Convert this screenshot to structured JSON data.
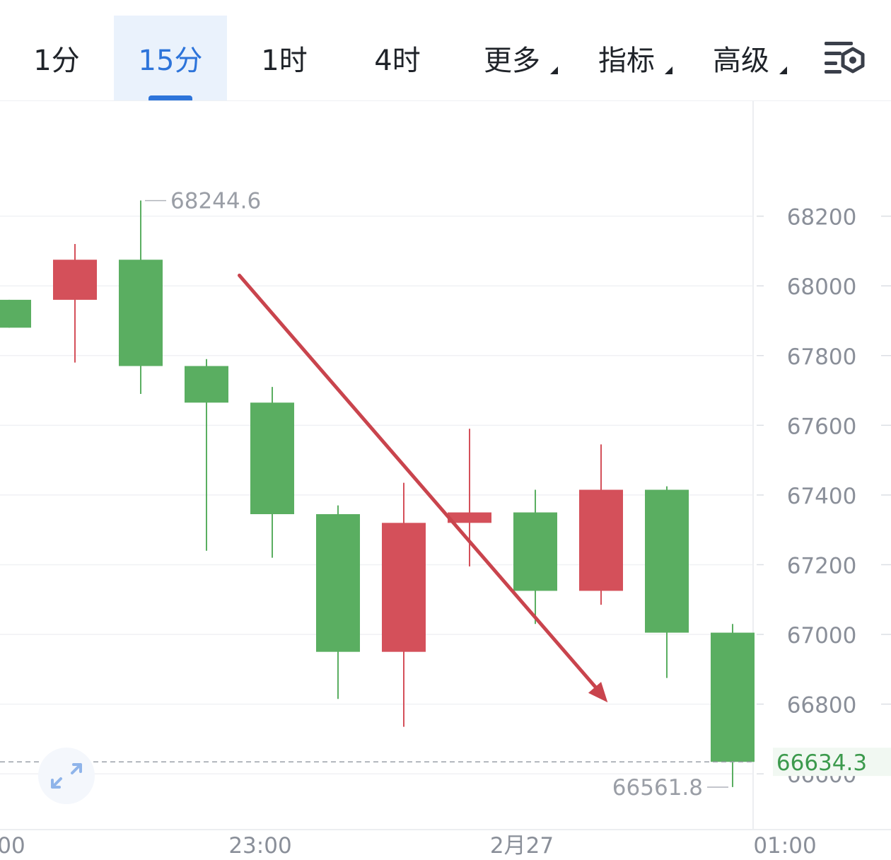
{
  "tabs": [
    {
      "label": "1分",
      "active": false,
      "has_menu": false
    },
    {
      "label": "15分",
      "active": true,
      "has_menu": false
    },
    {
      "label": "1时",
      "active": false,
      "has_menu": false
    },
    {
      "label": "4时",
      "active": false,
      "has_menu": false
    },
    {
      "label": "更多",
      "active": false,
      "has_menu": true
    },
    {
      "label": "指标",
      "active": false,
      "has_menu": true
    },
    {
      "label": "高级",
      "active": false,
      "has_menu": true
    }
  ],
  "settings_icon": "chart-settings-icon",
  "expand_icon": "expand-arrows-icon",
  "colors": {
    "up": "#5aae61",
    "down": "#d4505a",
    "accent": "#2d74da",
    "price_label": "#3c9a4d"
  },
  "chart_data": {
    "type": "candlestick",
    "y_ticks": [
      "68200",
      "68000",
      "67800",
      "67600",
      "67400",
      "67200",
      "67000",
      "66800",
      "66600"
    ],
    "x_ticks": [
      "00",
      "23:00",
      "2月27",
      "01:00"
    ],
    "ylim": [
      66440,
      68530
    ],
    "candles": [
      {
        "open": 67960,
        "close": 67880,
        "high": 67960,
        "low": 67880
      },
      {
        "open": 67960,
        "close": 68075,
        "high": 68120,
        "low": 67780
      },
      {
        "open": 68075,
        "close": 67770,
        "high": 68245,
        "low": 67690
      },
      {
        "open": 67770,
        "close": 67665,
        "high": 67790,
        "low": 67240
      },
      {
        "open": 67665,
        "close": 67345,
        "high": 67710,
        "low": 67220
      },
      {
        "open": 67345,
        "close": 66950,
        "high": 67370,
        "low": 66815
      },
      {
        "open": 66950,
        "close": 67320,
        "high": 67435,
        "low": 66735
      },
      {
        "open": 67320,
        "close": 67350,
        "high": 67590,
        "low": 67195
      },
      {
        "open": 67350,
        "close": 67125,
        "high": 67415,
        "low": 67030
      },
      {
        "open": 67125,
        "close": 67415,
        "high": 67545,
        "low": 67085
      },
      {
        "open": 67415,
        "close": 67005,
        "high": 67425,
        "low": 66875
      },
      {
        "open": 67005,
        "close": 66634.3,
        "high": 67030,
        "low": 66562
      }
    ],
    "max_label": "68244.6",
    "min_label": "66561.8",
    "last_price": "66634.3",
    "grid": true,
    "trend_arrow": {
      "from": {
        "candle": 3.5,
        "price": 68030
      },
      "to": {
        "candle": 9.1,
        "price": 66805
      }
    }
  }
}
